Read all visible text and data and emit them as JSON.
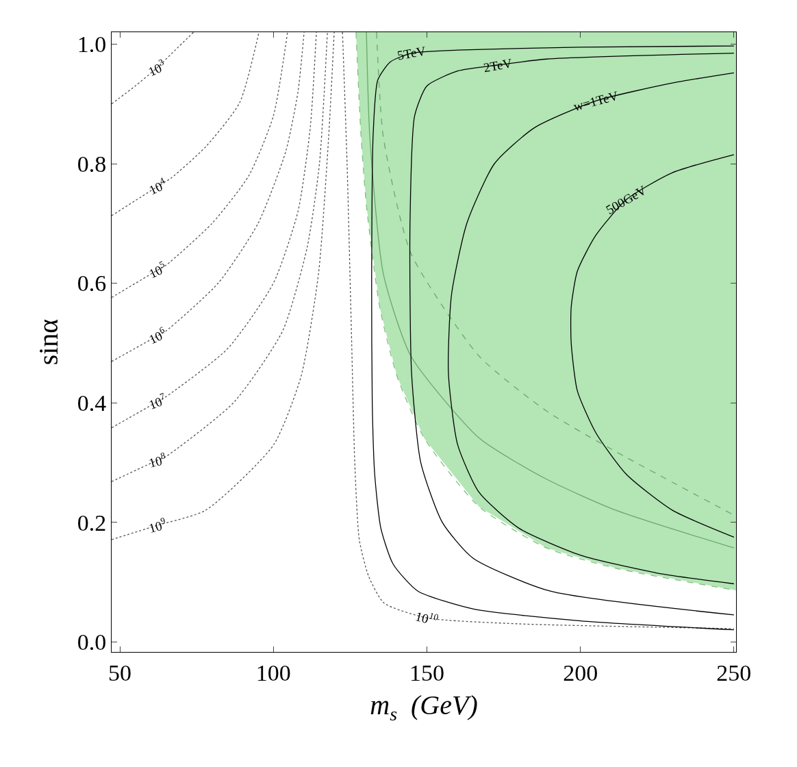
{
  "chart_data": {
    "type": "line",
    "xlabel": "m$_{s}$  (GeV)",
    "ylabel": "sinα",
    "xlim": [
      47.3,
      250.7
    ],
    "ylim": [
      -0.017,
      1.02
    ],
    "xticks": [
      50,
      100,
      150,
      200,
      250
    ],
    "yticks": [
      {
        "value": 0,
        "label": "0.0"
      },
      0.2,
      0.4,
      0.6,
      0.8,
      {
        "value": 1,
        "label": "1.0"
      }
    ],
    "series": [
      {
        "type": "area",
        "color": "#b3e5b5",
        "line_style": "dashed",
        "x": [
          126.9,
          128.5,
          130.3,
          134.7,
          140.3,
          149.2,
          167,
          189,
          211.6,
          250.7
        ],
        "values": [
          1.02,
          0.85,
          0.73,
          0.558,
          0.444,
          0.34,
          0.226,
          0.157,
          0.123,
          0.086
        ]
      },
      {
        "color": "#6aa86a",
        "line_style": "solid",
        "x": [
          130.3,
          131.4,
          135.8,
          144.8,
          167,
          189,
          211.6,
          250
        ],
        "values": [
          1.02,
          0.845,
          0.616,
          0.478,
          0.341,
          0.272,
          0.22,
          0.157
        ]
      },
      {
        "color": "#6aa86a",
        "line_style": "dashed",
        "x": [
          133.6,
          135.8,
          144.8,
          167,
          189,
          211.6,
          250
        ],
        "values": [
          1.02,
          0.845,
          0.65,
          0.478,
          0.386,
          0.318,
          0.212
        ]
      },
      {
        "color": "#555555",
        "line_style": "dotted",
        "x": [
          47.3,
          55,
          62,
          68,
          74
        ],
        "values": [
          0.9,
          0.93,
          0.96,
          0.99,
          1.02
        ]
      },
      {
        "color": "#555555",
        "line_style": "dotted",
        "x": [
          47.3,
          62.3,
          66.7,
          77.9,
          89,
          95.3
        ],
        "values": [
          0.713,
          0.762,
          0.776,
          0.828,
          0.902,
          1.02
        ]
      },
      {
        "color": "#555555",
        "line_style": "dotted",
        "x": [
          47.3,
          62.3,
          65,
          80,
          92,
          100,
          104.6
        ],
        "values": [
          0.576,
          0.622,
          0.63,
          0.7,
          0.78,
          0.88,
          1.02
        ]
      },
      {
        "color": "#555555",
        "line_style": "dotted",
        "x": [
          47.3,
          62.3,
          65,
          82,
          95,
          104,
          108,
          110
        ],
        "values": [
          0.469,
          0.512,
          0.52,
          0.6,
          0.7,
          0.82,
          0.92,
          1.02
        ]
      },
      {
        "color": "#555555",
        "line_style": "dotted",
        "x": [
          47.3,
          62.3,
          65,
          85,
          100,
          108,
          112,
          114
        ],
        "values": [
          0.358,
          0.402,
          0.41,
          0.49,
          0.6,
          0.72,
          0.86,
          1.02
        ]
      },
      {
        "color": "#555555",
        "line_style": "dotted",
        "x": [
          47.3,
          62.3,
          65,
          87,
          103,
          111,
          115,
          117.6
        ],
        "values": [
          0.268,
          0.304,
          0.31,
          0.4,
          0.52,
          0.66,
          0.8,
          1.02
        ]
      },
      {
        "color": "#555555",
        "line_style": "dotted",
        "x": [
          47.3,
          62.3,
          77.9,
          100,
          109,
          114.7,
          118,
          119.8
        ],
        "values": [
          0.171,
          0.195,
          0.22,
          0.329,
          0.444,
          0.616,
          0.845,
          1.02
        ]
      },
      {
        "color": "#555555",
        "line_style": "dotted",
        "x": [
          122.5,
          124,
          125.5,
          126.5,
          128,
          131,
          136,
          150,
          180,
          250
        ],
        "values": [
          1.02,
          0.8,
          0.5,
          0.3,
          0.17,
          0.11,
          0.065,
          0.04,
          0.03,
          0.022
        ]
      },
      {
        "color": "#000000",
        "line_style": "solid",
        "x": [
          250,
          200,
          160,
          145,
          138,
          134,
          132.5,
          132,
          132.2,
          133,
          135,
          139,
          147,
          165,
          200,
          250
        ],
        "values": [
          0.997,
          0.995,
          0.99,
          0.985,
          0.97,
          0.94,
          0.85,
          0.6,
          0.4,
          0.28,
          0.19,
          0.13,
          0.085,
          0.055,
          0.035,
          0.02
        ]
      },
      {
        "color": "#000000",
        "line_style": "solid",
        "x": [
          250,
          189,
          173,
          160,
          150,
          146,
          144.5,
          145,
          148,
          155,
          165,
          190,
          250
        ],
        "values": [
          0.985,
          0.975,
          0.965,
          0.955,
          0.93,
          0.88,
          0.7,
          0.45,
          0.3,
          0.2,
          0.14,
          0.085,
          0.045
        ]
      },
      {
        "color": "#000000",
        "line_style": "solid",
        "x": [
          250,
          230,
          205,
          185,
          172,
          163,
          158,
          157,
          160,
          167,
          180,
          200,
          225,
          250
        ],
        "values": [
          0.952,
          0.935,
          0.905,
          0.86,
          0.8,
          0.7,
          0.58,
          0.45,
          0.33,
          0.25,
          0.19,
          0.145,
          0.115,
          0.097
        ]
      },
      {
        "color": "#000000",
        "line_style": "solid",
        "x": [
          250,
          230,
          215,
          205,
          199,
          197,
          197,
          199,
          205,
          215,
          230,
          250
        ],
        "values": [
          0.815,
          0.785,
          0.74,
          0.68,
          0.62,
          0.56,
          0.5,
          0.42,
          0.35,
          0.28,
          0.22,
          0.175
        ]
      }
    ],
    "annotations": [
      {
        "text": "10$^{3}$",
        "x": 62,
        "y": 0.96
      },
      {
        "text": "10$^{4}$",
        "x": 62.3,
        "y": 0.762
      },
      {
        "text": "10$^{5}$",
        "x": 62.3,
        "y": 0.622
      },
      {
        "text": "10$^{6}$",
        "x": 62.3,
        "y": 0.512
      },
      {
        "text": "10$^{7}$",
        "x": 62.3,
        "y": 0.402
      },
      {
        "text": "10$^{8}$",
        "x": 62.3,
        "y": 0.304
      },
      {
        "text": "10$^{9}$",
        "x": 62.3,
        "y": 0.195
      },
      {
        "text": "10$^{10}$",
        "x": 150,
        "y": 0.04
      },
      {
        "text": "5TeV",
        "x": 145,
        "y": 0.985
      },
      {
        "text": "2TeV",
        "x": 173,
        "y": 0.965
      },
      {
        "text": "w=1TeV",
        "x": 205,
        "y": 0.905
      },
      {
        "text": "500GeV",
        "x": 215,
        "y": 0.74
      }
    ]
  }
}
